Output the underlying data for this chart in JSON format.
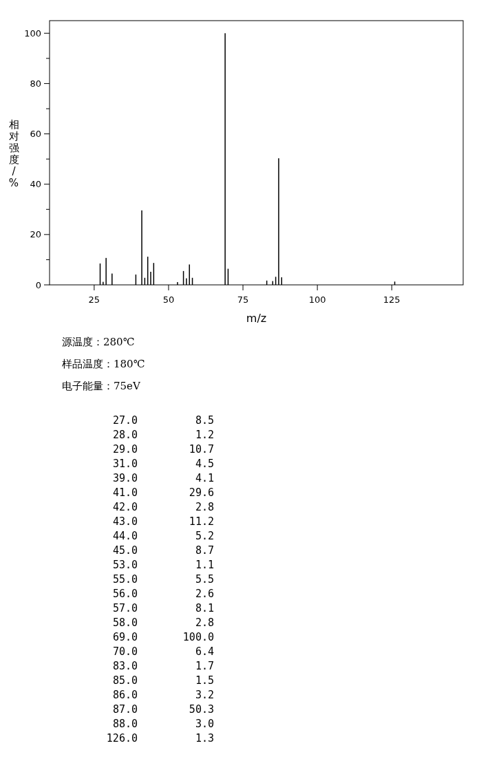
{
  "chart_data": {
    "type": "bar",
    "xlabel": "m/z",
    "ylabel": "相对强度/%",
    "x": [
      27,
      28,
      29,
      31,
      39,
      41,
      42,
      43,
      44,
      45,
      53,
      55,
      56,
      57,
      58,
      69,
      70,
      83,
      85,
      86,
      87,
      88,
      126
    ],
    "values": [
      8.5,
      1.2,
      10.7,
      4.5,
      4.1,
      29.6,
      2.8,
      11.2,
      5.2,
      8.7,
      1.1,
      5.5,
      2.6,
      8.1,
      2.8,
      100.0,
      6.4,
      1.7,
      1.5,
      3.2,
      50.3,
      3.0,
      1.3
    ],
    "color": "#000000",
    "xlim": [
      10,
      149
    ],
    "xticks": [
      25,
      50,
      75,
      100,
      125
    ],
    "ylim": [
      0,
      105
    ],
    "yticks": [
      0,
      {
        "value": 10,
        "label": null
      },
      20,
      {
        "value": 30,
        "label": null
      },
      40,
      {
        "value": 50,
        "label": null
      },
      60,
      {
        "value": 70,
        "label": null
      },
      80,
      {
        "value": 90,
        "label": null
      },
      100
    ],
    "annotations": [
      "源温度：280℃",
      "样品温度：180℃",
      "电子能量：75eV",
      "27.0 8.5",
      "28.0 1.2",
      "29.0 10.7",
      "31.0 4.5",
      "39.0 4.1",
      "41.0 29.6",
      "42.0 2.8",
      "43.0 11.2",
      "44.0 5.2",
      "45.0 8.7",
      "53.0 1.1",
      "55.0 5.5",
      "56.0 2.6",
      "57.0 8.1",
      "58.0 2.8",
      "69.0 100.0",
      "70.0 6.4",
      "83.0 1.7",
      "85.0 1.5",
      "86.0 3.2",
      "87.0 50.3",
      "88.0 3.0",
      "126.0 1.3"
    ]
  }
}
